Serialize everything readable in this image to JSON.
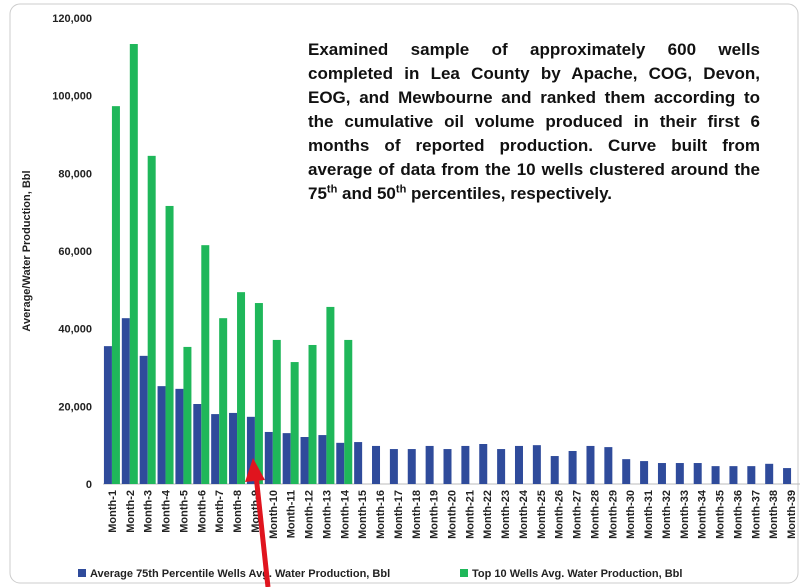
{
  "chart_data": {
    "type": "bar",
    "y_label": "Average/Water Production, Bbl",
    "annotation": [
      "Examined sample of approximately 600 wells completed in Lea County by Apache, COG, Devon, EOG, and Mewbourne and ranked them according to the cumulative oil volume produced in their first 6 months of reported production. Curve built from average of data from the 10 wells clustered around the 75",
      "th",
      " and 50",
      "th",
      " percentiles, respectively."
    ],
    "categories": [
      "Month-1",
      "Month-2",
      "Month-3",
      "Month-4",
      "Month-5",
      "Month-6",
      "Month-7",
      "Month-8",
      "Month-9",
      "Month-10",
      "Month-11",
      "Month-12",
      "Month-13",
      "Month-14",
      "Month-15",
      "Month-16",
      "Month-17",
      "Month-18",
      "Month-19",
      "Month-20",
      "Month-21",
      "Month-22",
      "Month-23",
      "Month-24",
      "Month-25",
      "Month-26",
      "Month-27",
      "Month-28",
      "Month-29",
      "Month-30",
      "Month-31",
      "Month-32",
      "Month-33",
      "Month-34",
      "Month-35",
      "Month-36",
      "Month-37",
      "Month-38",
      "Month-39"
    ],
    "series": [
      {
        "name": "Average 75th Percentile Wells Avg. Water Production, Bbl",
        "color": "#2f4b9b",
        "values": [
          35500,
          42700,
          33000,
          25200,
          24500,
          20600,
          18000,
          18300,
          17300,
          13400,
          13100,
          12100,
          12600,
          10600,
          10800,
          9800,
          9000,
          9000,
          9800,
          9000,
          9800,
          10300,
          9000,
          9800,
          10000,
          7200,
          8500,
          9800,
          9500,
          6400,
          5900,
          5400,
          5400,
          5400,
          4600,
          4600,
          4600,
          5200,
          4100
        ]
      },
      {
        "name": "Top 10 Wells Avg. Water Production, Bbl",
        "color": "#1fb75a",
        "values": [
          97300,
          113300,
          84500,
          71600,
          35300,
          61500,
          42700,
          49400,
          46600,
          37100,
          31400,
          35800,
          45600,
          37100,
          null,
          null,
          null,
          null,
          null,
          null,
          null,
          null,
          null,
          null,
          null,
          null,
          null,
          null,
          null,
          null,
          null,
          null,
          null,
          null,
          null,
          null,
          null,
          null,
          null
        ]
      }
    ],
    "ylim": [
      0,
      120000
    ],
    "yticks": [
      0,
      {
        "value": 20000,
        "label": "20,000"
      },
      {
        "value": 40000,
        "label": "40,000"
      },
      {
        "value": 60000,
        "label": "60,000"
      },
      {
        "value": 80000,
        "label": "80,000"
      },
      {
        "value": 100000,
        "label": "100,000"
      },
      {
        "value": 120000,
        "label": "120,000"
      }
    ]
  }
}
